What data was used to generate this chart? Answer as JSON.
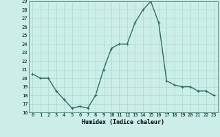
{
  "xlabel": "Humidex (Indice chaleur)",
  "x": [
    0,
    1,
    2,
    3,
    4,
    5,
    6,
    7,
    8,
    9,
    10,
    11,
    12,
    13,
    14,
    15,
    16,
    17,
    18,
    19,
    20,
    21,
    22,
    23
  ],
  "y": [
    20.5,
    20.0,
    20.0,
    18.5,
    17.5,
    16.5,
    16.7,
    16.5,
    18.0,
    21.0,
    23.5,
    24.0,
    24.0,
    26.5,
    28.0,
    29.0,
    26.5,
    19.7,
    19.2,
    19.0,
    19.0,
    18.5,
    18.5,
    18.0
  ],
  "line_color": "#2e6b5e",
  "marker": "+",
  "marker_size": 3,
  "line_width": 1.0,
  "ylim": [
    16,
    29
  ],
  "yticks": [
    16,
    17,
    18,
    19,
    20,
    21,
    22,
    23,
    24,
    25,
    26,
    27,
    28,
    29
  ],
  "xticks": [
    0,
    1,
    2,
    3,
    4,
    5,
    6,
    7,
    8,
    9,
    10,
    11,
    12,
    13,
    14,
    15,
    16,
    17,
    18,
    19,
    20,
    21,
    22,
    23
  ],
  "background_color": "#cceee8",
  "grid_color": "#aad8d0",
  "tick_fontsize": 5.0,
  "label_fontsize": 6.0
}
